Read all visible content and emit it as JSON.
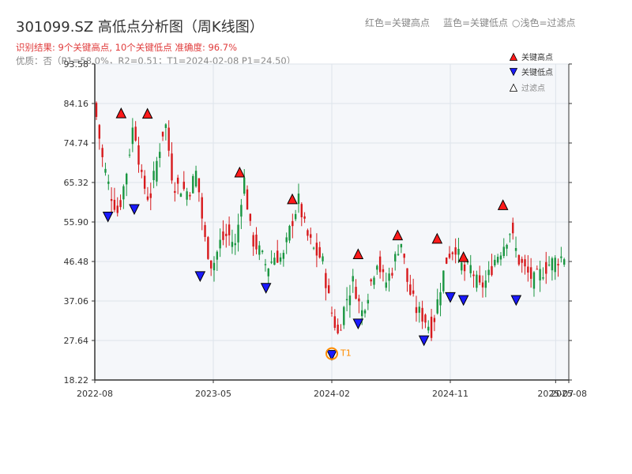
{
  "header": {
    "title": "301099.SZ 高低点分析图（周K线图）",
    "legend_red": "红色=关键高点",
    "legend_blue": "蓝色=关键低点",
    "legend_light": "○浅色=过滤点",
    "result": "识别结果: 9个关键高点, 10个关键低点   准确度: 96.7%",
    "quality": "优质：否（P1=58.0%，R2=0.51；T1=2024-02-08 P1=24.50）"
  },
  "colors": {
    "up": "#d7191c",
    "down": "#1a9641",
    "high_marker": "#ff1a1a",
    "low_marker": "#1a1aff",
    "t1": "#ff8c00",
    "plot_bg": "#f5f7fa",
    "grid": "#dde3ea"
  },
  "chart_data": {
    "type": "candlestick",
    "x_range": [
      "2022-08",
      "2025-08"
    ],
    "y_range": [
      18.22,
      93.58
    ],
    "y_ticks": [
      "18.22",
      "27.64",
      "37.06",
      "46.48",
      "55.90",
      "65.32",
      "74.74",
      "84.16",
      "93.58"
    ],
    "x_ticks": [
      "2022-08",
      "2023-05",
      "2024-02",
      "2024-11",
      "2025-07",
      "2025-08"
    ],
    "grid": true,
    "legend_position": "top-right",
    "legend": {
      "high": "关键高点",
      "low": "关键低点",
      "filtered": "过滤点"
    },
    "key_highs": [
      {
        "date": "2022-10",
        "price": 81.5
      },
      {
        "date": "2022-12",
        "price": 81.4
      },
      {
        "date": "2023-07",
        "price": 67.4
      },
      {
        "date": "2023-11",
        "price": 61.0
      },
      {
        "date": "2024-04",
        "price": 47.9
      },
      {
        "date": "2024-07",
        "price": 52.4
      },
      {
        "date": "2024-10",
        "price": 51.6
      },
      {
        "date": "2024-12",
        "price": 47.2
      },
      {
        "date": "2025-03",
        "price": 59.6
      }
    ],
    "key_lows": [
      {
        "date": "2022-09",
        "price": 57.5
      },
      {
        "date": "2022-11",
        "price": 59.3
      },
      {
        "date": "2023-04",
        "price": 43.3
      },
      {
        "date": "2023-09",
        "price": 40.5
      },
      {
        "date": "2024-02",
        "price": 24.5
      },
      {
        "date": "2024-04",
        "price": 32.0
      },
      {
        "date": "2024-09",
        "price": 28.0
      },
      {
        "date": "2024-11",
        "price": 38.3
      },
      {
        "date": "2024-12",
        "price": 37.6
      },
      {
        "date": "2025-04",
        "price": 37.6
      }
    ],
    "t1": {
      "label": "T1",
      "date": "2024-02",
      "price": 24.5
    }
  }
}
